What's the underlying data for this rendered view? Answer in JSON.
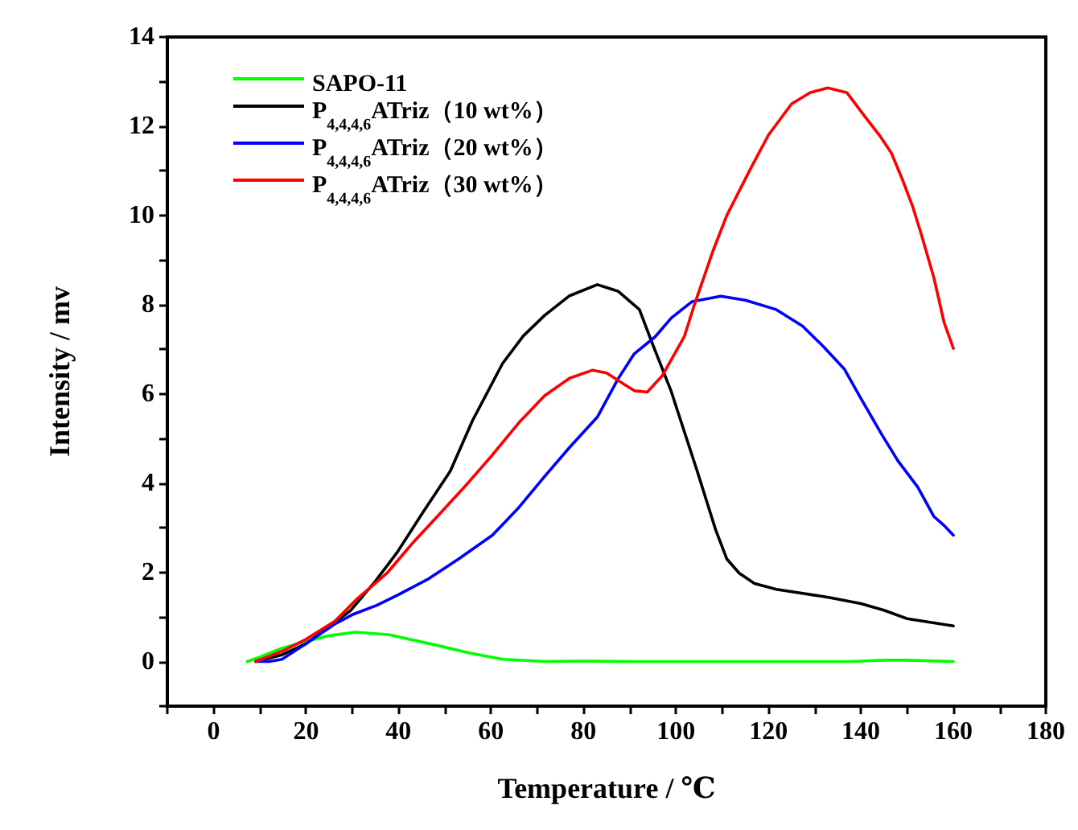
{
  "chart_data": {
    "type": "line",
    "xlabel": "Temperature / ℃",
    "ylabel": "Intensity / mv",
    "xlim": [
      -10,
      180
    ],
    "ylim": [
      -1,
      14
    ],
    "xticks": [
      {
        "value": -10,
        "label": null
      },
      0,
      {
        "value": 10,
        "label": null
      },
      20,
      {
        "value": 30,
        "label": null
      },
      40,
      {
        "value": 50,
        "label": null
      },
      60,
      {
        "value": 70,
        "label": null
      },
      80,
      {
        "value": 90,
        "label": null
      },
      100,
      {
        "value": 110,
        "label": null
      },
      120,
      {
        "value": 130,
        "label": null
      },
      140,
      {
        "value": 150,
        "label": null
      },
      160,
      {
        "value": 170,
        "label": null
      },
      180
    ],
    "yticks": [
      {
        "value": -1,
        "label": null
      },
      0,
      {
        "value": 1,
        "label": null
      },
      2,
      {
        "value": 3,
        "label": null
      },
      4,
      {
        "value": 5,
        "label": null
      },
      6,
      {
        "value": 7,
        "label": null
      },
      8,
      {
        "value": 9,
        "label": null
      },
      10,
      {
        "value": 11,
        "label": null
      },
      12,
      {
        "value": 13,
        "label": null
      },
      14
    ],
    "grid": false,
    "legend": "top left",
    "marker": "none",
    "line_style": "solid",
    "series": [
      {
        "name": "SAPO-11",
        "color": "#00ff00",
        "x": [
          7.3,
          10,
          14.8,
          20,
          25,
          30.7,
          38,
          48.9,
          55,
          62.5,
          72,
          80,
          90,
          100,
          120,
          138,
          145,
          150,
          160
        ],
        "values": [
          0,
          0.1,
          0.3,
          0.45,
          0.58,
          0.66,
          0.6,
          0.35,
          0.2,
          0.05,
          0,
          0.01,
          0,
          0,
          0,
          0,
          0.03,
          0.03,
          0
        ]
      },
      {
        "name": "P$_{4,4,4,6}$ATriz（10 wt%）",
        "color": "#000000",
        "x": [
          9.1,
          14.8,
          20,
          29.6,
          35,
          39.8,
          45,
          51.2,
          56,
          62.5,
          67,
          71.6,
          77,
          83,
          87.5,
          92.1,
          95,
          98.9,
          104.6,
          108.6,
          111,
          113.7,
          117,
          121.7,
          133,
          140,
          145,
          150,
          155,
          160
        ],
        "values": [
          0,
          0.15,
          0.4,
          1.14,
          1.8,
          2.46,
          3.3,
          4.27,
          5.4,
          6.68,
          7.3,
          7.76,
          8.2,
          8.45,
          8.3,
          7.89,
          7.1,
          6.08,
          4.27,
          2.95,
          2.3,
          1.98,
          1.75,
          1.62,
          1.44,
          1.3,
          1.15,
          0.96,
          0.88,
          0.8
        ]
      },
      {
        "name": "P$_{4,4,4,6}$ATriz（20 wt%）",
        "color": "#0000ff",
        "x": [
          9.1,
          12,
          14.8,
          20,
          26.2,
          30,
          35.3,
          40,
          46.6,
          53,
          60.3,
          66,
          71.6,
          77,
          83,
          87.5,
          91,
          95.5,
          99,
          103.5,
          109.7,
          115,
          121.7,
          127.4,
          132,
          136.4,
          140,
          144.4,
          148,
          152.3,
          155.8,
          158,
          160
        ],
        "values": [
          0,
          0,
          0.05,
          0.4,
          0.84,
          1.05,
          1.26,
          1.5,
          1.86,
          2.3,
          2.83,
          3.45,
          4.15,
          4.8,
          5.48,
          6.34,
          6.9,
          7.28,
          7.7,
          8.07,
          8.19,
          8.1,
          7.89,
          7.52,
          7.05,
          6.56,
          5.9,
          5.11,
          4.5,
          3.91,
          3.25,
          3.05,
          2.83
        ]
      },
      {
        "name": "P$_{4,4,4,6}$ATriz（30 wt%）",
        "color": "#ff0000",
        "x": [
          9.1,
          14.8,
          20,
          26.2,
          31,
          37.5,
          43,
          48.9,
          55,
          60.3,
          66,
          71.6,
          77,
          81.9,
          85,
          88.7,
          91,
          93.8,
          97,
          101.8,
          104,
          108,
          111,
          115.9,
          120,
          125,
          129,
          132.8,
          137,
          141,
          144,
          146.6,
          149,
          151.2,
          153,
          155.8,
          158,
          160
        ],
        "values": [
          0,
          0.23,
          0.5,
          0.9,
          1.4,
          1.98,
          2.65,
          3.31,
          4.0,
          4.63,
          5.35,
          5.96,
          6.35,
          6.53,
          6.47,
          6.22,
          6.07,
          6.04,
          6.4,
          7.28,
          8.0,
          9.2,
          10.0,
          11.0,
          11.8,
          12.5,
          12.75,
          12.86,
          12.75,
          12.2,
          11.8,
          11.4,
          10.8,
          10.2,
          9.6,
          8.6,
          7.6,
          7.02
        ]
      }
    ]
  }
}
